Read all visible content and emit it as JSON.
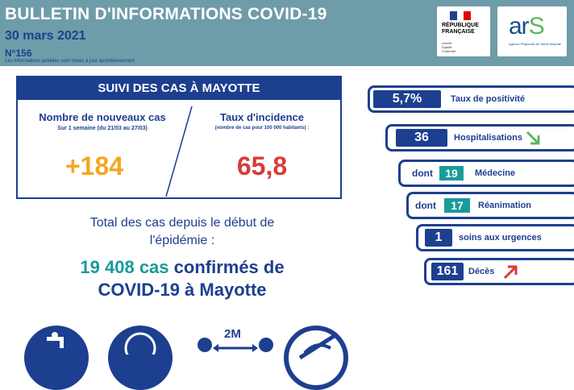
{
  "header": {
    "title": "BULLETIN D'INFORMATIONS COVID-19",
    "date": "30 mars 2021",
    "number": "N°156",
    "note": "Les informations publiées sont mises à jour quotidiennement"
  },
  "logos": {
    "rf_line1": "RÉPUBLIQUE",
    "rf_line2": "FRANÇAISE",
    "rf_motto1": "Liberté",
    "rf_motto2": "Égalité",
    "rf_motto3": "Fraternité",
    "ars_a": "ar",
    "ars_s": "S",
    "ars_sub": "Agence Régionale de Santé Mayotte"
  },
  "cases_box": {
    "heading": "SUIVI DES CAS À MAYOTTE",
    "new_cases_title": "Nombre de nouveaux cas",
    "new_cases_period": "Sur 1 semaine (du 21/03 au 27/03)",
    "new_cases_value": "+184",
    "incidence_title": "Taux d'incidence",
    "incidence_sub": "(nombre de cas pour 100 000 habitants) :",
    "incidence_value": "65,8"
  },
  "total": {
    "line1": "Total des cas depuis le début de",
    "line2": "l'épidémie :",
    "count": "19 408 cas",
    "line3_rest": " confirmés de",
    "line4": "COVID-19 à Mayotte"
  },
  "indicators": {
    "positivity_value": "5,7%",
    "positivity_label": "Taux de positivité",
    "hosp_value": "36",
    "hosp_label": "Hospitalisations",
    "dont1": "dont",
    "medicine_value": "19",
    "medicine_label": "Médecine",
    "dont2": "dont",
    "resus_value": "17",
    "resus_label": "Réanimation",
    "urgent_value": "1",
    "urgent_label": "soins aux urgences",
    "deaths_value": "161",
    "deaths_label": "Décès"
  },
  "icons": {
    "distance_label": "2M"
  },
  "colors": {
    "header_bg": "#6f9ca9",
    "navy": "#1d3f8f",
    "teal": "#1a9a9a",
    "orange": "#f5a623",
    "red": "#d93a3a",
    "green_arrow": "#5cb85c"
  }
}
